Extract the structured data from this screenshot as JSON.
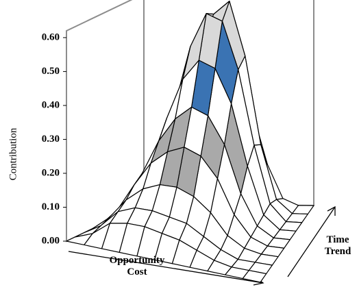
{
  "chart_data": {
    "type": "surface",
    "zlabel": "Contribution",
    "xlabel": "Opportunity Cost",
    "ylabel": "Time Trend",
    "zlim": [
      0,
      0.62
    ],
    "zticks": [
      {
        "value": 0,
        "label": "0.00"
      },
      {
        "value": 0.1,
        "label": "0.10"
      },
      {
        "value": 0.2,
        "label": "0.20"
      },
      {
        "value": 0.3,
        "label": "0.30"
      },
      {
        "value": 0.4,
        "label": "0.40"
      },
      {
        "value": 0.5,
        "label": "0.50"
      },
      {
        "value": 0.6,
        "label": "0.60"
      }
    ],
    "band_colors": [
      "#ffffff",
      "#ffffff",
      "#a9a9a9",
      "#ffffff",
      "#3a73b3",
      "#d9d9d9",
      "#000000"
    ],
    "wall_color": "#8c8c8c",
    "z": [
      [
        0,
        0,
        0,
        0,
        0,
        0,
        0,
        0,
        0,
        0,
        0,
        0
      ],
      [
        0,
        0.02,
        0.06,
        0.07,
        0.07,
        0.06,
        0.05,
        0.03,
        0.01,
        0,
        0,
        0
      ],
      [
        0,
        0.03,
        0.08,
        0.1,
        0.1,
        0.09,
        0.08,
        0.05,
        0.02,
        0,
        0,
        0
      ],
      [
        0,
        0.04,
        0.1,
        0.14,
        0.16,
        0.16,
        0.14,
        0.1,
        0.04,
        0.01,
        0,
        0
      ],
      [
        0,
        0.05,
        0.13,
        0.2,
        0.24,
        0.26,
        0.24,
        0.18,
        0.08,
        0.02,
        0,
        0
      ],
      [
        0,
        0.06,
        0.15,
        0.25,
        0.32,
        0.36,
        0.34,
        0.26,
        0.12,
        0.03,
        0,
        0
      ],
      [
        0,
        0.06,
        0.16,
        0.3,
        0.42,
        0.48,
        0.46,
        0.36,
        0.18,
        0.04,
        0,
        0
      ],
      [
        0,
        0.05,
        0.15,
        0.32,
        0.5,
        0.6,
        0.58,
        0.44,
        0.22,
        0.05,
        0,
        0
      ],
      [
        0,
        0.04,
        0.12,
        0.28,
        0.48,
        0.58,
        0.62,
        0.46,
        0.2,
        0.04,
        0,
        0
      ],
      [
        0,
        0.02,
        0.06,
        0.14,
        0.26,
        0.34,
        0.38,
        0.28,
        0.12,
        0.02,
        0,
        0
      ]
    ]
  }
}
